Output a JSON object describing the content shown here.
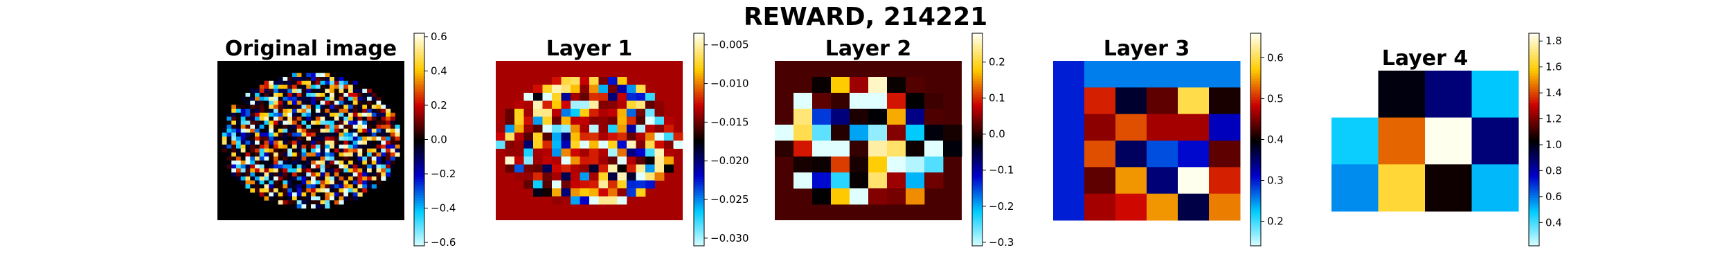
{
  "figure": {
    "suptitle": "REWARD, 214221"
  },
  "colormap": {
    "name": "seismic-like diverging (cyan-blue-black-red-yellow-white)",
    "stops": [
      "#e0ffff",
      "#00ccff",
      "#0000cc",
      "#000000",
      "#cc0000",
      "#ffcc00",
      "#ffffee"
    ]
  },
  "chart_data": [
    {
      "type": "heatmap",
      "title": "Original image",
      "grid_size": 40,
      "visible_region": "circular",
      "colorbar": {
        "vmin": -0.62,
        "vmax": 0.62,
        "ticks": [
          {
            "v": 0.6,
            "label": "0.6"
          },
          {
            "v": 0.4,
            "label": "0.4"
          },
          {
            "v": 0.2,
            "label": "0.2"
          },
          {
            "v": 0.0,
            "label": "0.0"
          },
          {
            "v": -0.2,
            "label": "−0.2"
          },
          {
            "v": -0.4,
            "label": "−0.4"
          },
          {
            "v": -0.6,
            "label": "−0.6"
          }
        ]
      },
      "background_value": 0.0
    },
    {
      "type": "heatmap",
      "title": "Layer 1",
      "grid_size": 20,
      "visible_region": "circular",
      "colorbar": {
        "vmin": -0.031,
        "vmax": -0.0035,
        "ticks": [
          {
            "v": -0.005,
            "label": "−0.005"
          },
          {
            "v": -0.01,
            "label": "−0.010"
          },
          {
            "v": -0.015,
            "label": "−0.015"
          },
          {
            "v": -0.02,
            "label": "−0.020"
          },
          {
            "v": -0.025,
            "label": "−0.025"
          },
          {
            "v": -0.03,
            "label": "−0.030"
          }
        ]
      },
      "background_value": -0.0135
    },
    {
      "type": "heatmap",
      "title": "Layer 2",
      "grid_size": 10,
      "visible_region": "circular",
      "colorbar": {
        "vmin": -0.31,
        "vmax": 0.28,
        "ticks": [
          {
            "v": 0.2,
            "label": "0.2"
          },
          {
            "v": 0.1,
            "label": "0.1"
          },
          {
            "v": 0.0,
            "label": "0.0"
          },
          {
            "v": -0.1,
            "label": "−0.1"
          },
          {
            "v": -0.2,
            "label": "−0.2"
          },
          {
            "v": -0.3,
            "label": "−0.3"
          }
        ]
      },
      "background_value": 0.02
    },
    {
      "type": "heatmap",
      "title": "Layer 3",
      "colorbar": {
        "vmin": 0.14,
        "vmax": 0.66,
        "ticks": [
          {
            "v": 0.6,
            "label": "0.6"
          },
          {
            "v": 0.5,
            "label": "0.5"
          },
          {
            "v": 0.4,
            "label": "0.4"
          },
          {
            "v": 0.3,
            "label": "0.3"
          },
          {
            "v": 0.2,
            "label": "0.2"
          }
        ]
      },
      "values": [
        [
          0.3,
          0.26,
          0.26,
          0.26,
          0.26,
          0.26
        ],
        [
          0.3,
          0.5,
          0.38,
          0.44,
          0.6,
          0.41
        ],
        [
          0.3,
          0.46,
          0.52,
          0.47,
          0.47,
          0.32
        ],
        [
          0.3,
          0.52,
          0.36,
          0.28,
          0.31,
          0.44
        ],
        [
          0.3,
          0.44,
          0.55,
          0.35,
          0.66,
          0.5
        ],
        [
          0.3,
          0.47,
          0.49,
          0.55,
          0.37,
          0.54
        ]
      ]
    },
    {
      "type": "heatmap",
      "title": "Layer 4",
      "colorbar": {
        "vmin": 0.22,
        "vmax": 1.86,
        "ticks": [
          {
            "v": 1.8,
            "label": "1.8"
          },
          {
            "v": 1.6,
            "label": "1.6"
          },
          {
            "v": 1.4,
            "label": "1.4"
          },
          {
            "v": 1.2,
            "label": "1.2"
          },
          {
            "v": 1.0,
            "label": "1.0"
          },
          {
            "v": 0.8,
            "label": "0.8"
          },
          {
            "v": 0.6,
            "label": "0.6"
          },
          {
            "v": 0.4,
            "label": "0.4"
          }
        ]
      },
      "values": [
        [
          null,
          1.02,
          0.88,
          0.5
        ],
        [
          0.48,
          1.45,
          1.86,
          0.88
        ],
        [
          0.58,
          1.65,
          1.06,
          0.52
        ]
      ]
    }
  ]
}
